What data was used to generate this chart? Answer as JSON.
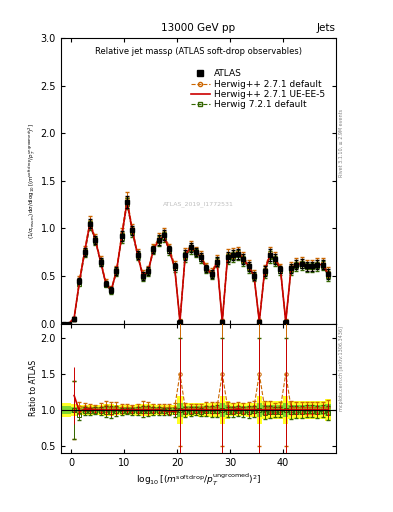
{
  "title_top": "13000 GeV pp",
  "title_right": "Jets",
  "plot_title": "Relative jet massρ (ATLAS soft-drop observables)",
  "ylabel_main": "(1/σ_{resum}) dσ/d log_{10}[(m^{soft drop}/p_T^{ungroomed})^2]",
  "ylabel_ratio": "Ratio to ATLAS",
  "right_label_main": "Rivet 3.1.10, ≥ 2.9M events",
  "right_label_ratio": "mcplots.cern.ch [arXiv:1306.3436]",
  "xlim": [
    -2,
    50
  ],
  "ylim_main": [
    0,
    3
  ],
  "ylim_ratio": [
    0.4,
    2.2
  ],
  "legend_entries": [
    "ATLAS",
    "Herwig++ 2.7.1 default",
    "Herwig++ 2.7.1 UE-EE-5",
    "Herwig 7.2.1 default"
  ],
  "atlas_color": "#000000",
  "hw271d_color": "#cc6600",
  "hw271ue_color": "#cc0000",
  "hw721d_color": "#336600",
  "x_ticks": [
    0,
    10,
    20,
    30,
    40
  ],
  "watermark": "ATLAS_2019_I1772531",
  "bin_width": 1.0,
  "atlas_x": [
    -1.5,
    -0.5,
    0.5,
    1.5,
    2.5,
    3.5,
    4.5,
    5.5,
    6.5,
    7.5,
    8.5,
    9.5,
    10.5,
    11.5,
    12.5,
    13.5,
    14.5,
    15.5,
    16.5,
    17.5,
    18.5,
    19.5,
    20.5,
    21.5,
    22.5,
    23.5,
    24.5,
    25.5,
    26.5,
    27.5,
    28.5,
    29.5,
    30.5,
    31.5,
    32.5,
    33.5,
    34.5,
    35.5,
    36.5,
    37.5,
    38.5,
    39.5,
    40.5,
    41.5,
    42.5,
    43.5,
    44.5,
    45.5,
    46.5,
    47.5,
    48.5
  ],
  "atlas_y": [
    0.0,
    0.0,
    0.05,
    0.45,
    0.75,
    1.05,
    0.88,
    0.65,
    0.42,
    0.35,
    0.55,
    0.92,
    1.28,
    0.98,
    0.72,
    0.5,
    0.55,
    0.78,
    0.88,
    0.93,
    0.78,
    0.6,
    0.02,
    0.72,
    0.8,
    0.75,
    0.7,
    0.58,
    0.52,
    0.65,
    0.02,
    0.7,
    0.72,
    0.73,
    0.68,
    0.6,
    0.5,
    0.02,
    0.55,
    0.72,
    0.68,
    0.57,
    0.02,
    0.58,
    0.62,
    0.63,
    0.6,
    0.6,
    0.62,
    0.62,
    0.52
  ],
  "atlas_yerr": [
    0.0,
    0.0,
    0.02,
    0.03,
    0.04,
    0.05,
    0.04,
    0.04,
    0.03,
    0.03,
    0.04,
    0.05,
    0.06,
    0.05,
    0.04,
    0.04,
    0.04,
    0.04,
    0.05,
    0.05,
    0.04,
    0.04,
    0.02,
    0.05,
    0.05,
    0.04,
    0.04,
    0.04,
    0.04,
    0.05,
    0.02,
    0.05,
    0.05,
    0.05,
    0.05,
    0.05,
    0.04,
    0.02,
    0.05,
    0.06,
    0.05,
    0.04,
    0.02,
    0.05,
    0.05,
    0.05,
    0.05,
    0.05,
    0.05,
    0.05,
    0.05
  ],
  "hw271d_y": [
    0.0,
    0.0,
    0.05,
    0.47,
    0.78,
    1.08,
    0.9,
    0.67,
    0.44,
    0.36,
    0.57,
    0.95,
    1.32,
    1.0,
    0.74,
    0.52,
    0.57,
    0.8,
    0.9,
    0.96,
    0.8,
    0.62,
    0.03,
    0.74,
    0.82,
    0.77,
    0.72,
    0.6,
    0.54,
    0.67,
    0.03,
    0.73,
    0.74,
    0.76,
    0.7,
    0.62,
    0.52,
    0.03,
    0.57,
    0.75,
    0.7,
    0.59,
    0.03,
    0.6,
    0.64,
    0.65,
    0.62,
    0.62,
    0.64,
    0.64,
    0.54
  ],
  "hw271ue_y": [
    0.0,
    0.0,
    0.06,
    0.44,
    0.76,
    1.06,
    0.88,
    0.65,
    0.42,
    0.35,
    0.55,
    0.92,
    1.28,
    0.98,
    0.72,
    0.5,
    0.55,
    0.78,
    0.88,
    0.92,
    0.77,
    0.59,
    0.02,
    0.72,
    0.8,
    0.75,
    0.7,
    0.58,
    0.52,
    0.65,
    0.02,
    0.7,
    0.72,
    0.74,
    0.68,
    0.6,
    0.5,
    0.02,
    0.55,
    0.72,
    0.68,
    0.57,
    0.02,
    0.58,
    0.62,
    0.63,
    0.6,
    0.6,
    0.62,
    0.62,
    0.52
  ],
  "hw721d_y": [
    0.0,
    0.0,
    0.05,
    0.42,
    0.74,
    1.03,
    0.87,
    0.64,
    0.41,
    0.34,
    0.54,
    0.9,
    1.26,
    0.96,
    0.71,
    0.49,
    0.54,
    0.77,
    0.87,
    0.91,
    0.76,
    0.58,
    0.02,
    0.7,
    0.78,
    0.74,
    0.68,
    0.57,
    0.51,
    0.64,
    0.02,
    0.68,
    0.7,
    0.72,
    0.66,
    0.58,
    0.49,
    0.02,
    0.53,
    0.7,
    0.66,
    0.55,
    0.02,
    0.56,
    0.6,
    0.61,
    0.59,
    0.59,
    0.6,
    0.61,
    0.5
  ],
  "hw271d_yerr": [
    0.0,
    0.0,
    0.02,
    0.03,
    0.04,
    0.05,
    0.04,
    0.04,
    0.03,
    0.03,
    0.04,
    0.05,
    0.06,
    0.05,
    0.04,
    0.04,
    0.04,
    0.04,
    0.05,
    0.05,
    0.04,
    0.04,
    0.02,
    0.05,
    0.05,
    0.04,
    0.04,
    0.04,
    0.04,
    0.05,
    0.02,
    0.05,
    0.05,
    0.05,
    0.05,
    0.05,
    0.04,
    0.02,
    0.05,
    0.06,
    0.05,
    0.04,
    0.02,
    0.05,
    0.05,
    0.05,
    0.05,
    0.05,
    0.05,
    0.05,
    0.05
  ],
  "hw721d_yerr": [
    0.0,
    0.0,
    0.02,
    0.03,
    0.04,
    0.05,
    0.04,
    0.04,
    0.03,
    0.03,
    0.04,
    0.05,
    0.06,
    0.05,
    0.04,
    0.04,
    0.04,
    0.04,
    0.05,
    0.05,
    0.04,
    0.04,
    0.02,
    0.05,
    0.05,
    0.04,
    0.04,
    0.04,
    0.04,
    0.05,
    0.02,
    0.05,
    0.05,
    0.05,
    0.05,
    0.05,
    0.04,
    0.02,
    0.05,
    0.06,
    0.05,
    0.04,
    0.02,
    0.05,
    0.05,
    0.05,
    0.05,
    0.05,
    0.05,
    0.05,
    0.05
  ],
  "hw271ue_yerr": [
    0.0,
    0.0,
    0.02,
    0.03,
    0.04,
    0.05,
    0.04,
    0.04,
    0.03,
    0.03,
    0.04,
    0.05,
    0.06,
    0.05,
    0.04,
    0.04,
    0.04,
    0.04,
    0.05,
    0.05,
    0.04,
    0.04,
    0.02,
    0.05,
    0.05,
    0.04,
    0.04,
    0.04,
    0.04,
    0.05,
    0.02,
    0.05,
    0.05,
    0.05,
    0.05,
    0.05,
    0.04,
    0.02,
    0.05,
    0.06,
    0.05,
    0.04,
    0.02,
    0.05,
    0.05,
    0.05,
    0.05,
    0.05,
    0.05,
    0.05,
    0.05
  ],
  "band_yellow": [
    0.1,
    0.1,
    0.08,
    0.07,
    0.07,
    0.07,
    0.07,
    0.07,
    0.08,
    0.08,
    0.07,
    0.07,
    0.07,
    0.07,
    0.08,
    0.08,
    0.08,
    0.08,
    0.07,
    0.07,
    0.07,
    0.07,
    0.2,
    0.1,
    0.09,
    0.09,
    0.1,
    0.1,
    0.1,
    0.1,
    0.2,
    0.12,
    0.09,
    0.09,
    0.09,
    0.1,
    0.1,
    0.2,
    0.12,
    0.12,
    0.12,
    0.12,
    0.2,
    0.12,
    0.12,
    0.12,
    0.12,
    0.12,
    0.12,
    0.12,
    0.15
  ],
  "band_green": [
    0.05,
    0.05,
    0.04,
    0.03,
    0.04,
    0.04,
    0.04,
    0.04,
    0.04,
    0.04,
    0.04,
    0.04,
    0.04,
    0.04,
    0.04,
    0.04,
    0.04,
    0.04,
    0.04,
    0.04,
    0.04,
    0.04,
    0.1,
    0.06,
    0.05,
    0.05,
    0.06,
    0.06,
    0.06,
    0.06,
    0.1,
    0.07,
    0.05,
    0.05,
    0.05,
    0.06,
    0.06,
    0.1,
    0.07,
    0.07,
    0.07,
    0.07,
    0.1,
    0.07,
    0.07,
    0.07,
    0.07,
    0.07,
    0.07,
    0.07,
    0.08
  ],
  "fontsize_ticks": 7,
  "fontsize_legend": 6.5
}
